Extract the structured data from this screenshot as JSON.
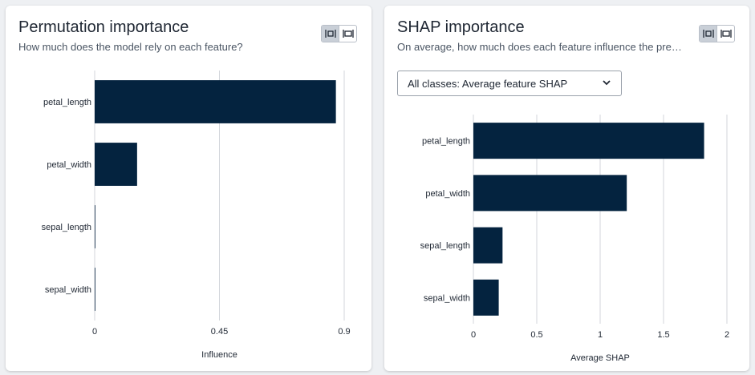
{
  "left_panel": {
    "title": "Permutation importance",
    "subtitle": "How much does the model rely on each feature?",
    "toggle_icons": [
      "fit-width-icon",
      "full-width-icon"
    ]
  },
  "right_panel": {
    "title": "SHAP importance",
    "subtitle": "On average, how much does each feature influence the predic…",
    "toggle_icons": [
      "fit-width-icon",
      "full-width-icon"
    ],
    "dropdown": {
      "selected": "All classes: Average feature SHAP",
      "icon": "chevron-down-icon"
    }
  },
  "colors": {
    "bar": "#04233f",
    "grid": "#d3d6db",
    "axis_text": "#1f2733"
  },
  "chart_data": [
    {
      "type": "bar",
      "orientation": "horizontal",
      "categories": [
        "petal_length",
        "petal_width",
        "sepal_length",
        "sepal_width"
      ],
      "values": [
        0.87,
        0.153,
        0.002,
        0.001
      ],
      "xlabel": "Influence",
      "xlim": [
        0,
        0.9
      ],
      "xticks": [
        0,
        0.45,
        0.9
      ],
      "xtick_labels": [
        "0",
        "0.45",
        "0.9"
      ],
      "grid": true
    },
    {
      "type": "bar",
      "orientation": "horizontal",
      "categories": [
        "petal_length",
        "petal_width",
        "sepal_length",
        "sepal_width"
      ],
      "values": [
        1.82,
        1.21,
        0.23,
        0.2
      ],
      "xlabel": "Average SHAP",
      "xlim": [
        0,
        2
      ],
      "xticks": [
        0,
        0.5,
        1,
        1.5,
        2
      ],
      "xtick_labels": [
        "0",
        "0.5",
        "1",
        "1.5",
        "2"
      ],
      "grid": true
    }
  ]
}
